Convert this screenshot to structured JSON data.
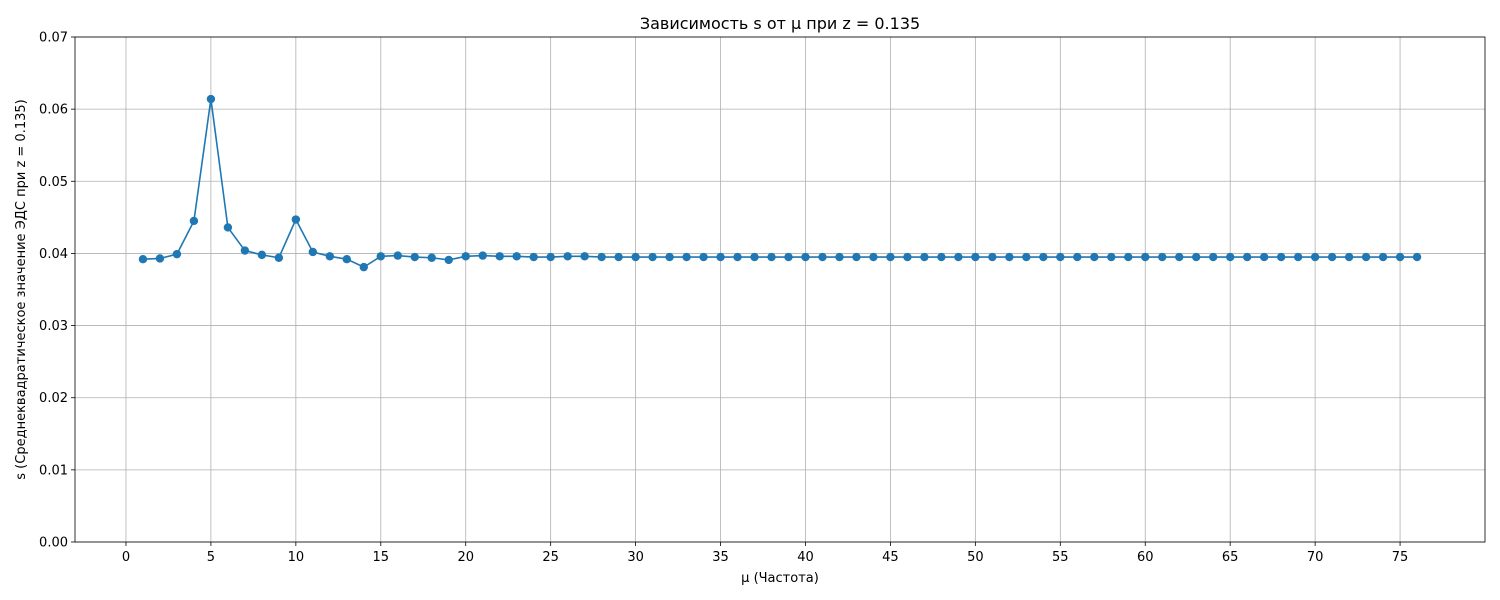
{
  "chart_data": {
    "type": "line",
    "title": "Зависимость s от μ при z = 0.135",
    "xlabel": "μ (Частота)",
    "ylabel": "s (Среднеквадратическое значение ЭДС при z = 0.135)",
    "xlim": [
      -3,
      80
    ],
    "ylim": [
      0,
      0.07
    ],
    "xticks": [
      0,
      5,
      10,
      15,
      20,
      25,
      30,
      35,
      40,
      45,
      50,
      55,
      60,
      65,
      70,
      75
    ],
    "yticks": [
      "0.00",
      "0.01",
      "0.02",
      "0.03",
      "0.04",
      "0.05",
      "0.06",
      "0.07"
    ],
    "grid": true,
    "color": "#1f77b4",
    "x": [
      1,
      2,
      3,
      4,
      5,
      6,
      7,
      8,
      9,
      10,
      11,
      12,
      13,
      14,
      15,
      16,
      17,
      18,
      19,
      20,
      21,
      22,
      23,
      24,
      25,
      26,
      27,
      28,
      29,
      30,
      31,
      32,
      33,
      34,
      35,
      36,
      37,
      38,
      39,
      40,
      41,
      42,
      43,
      44,
      45,
      46,
      47,
      48,
      49,
      50,
      51,
      52,
      53,
      54,
      55,
      56,
      57,
      58,
      59,
      60,
      61,
      62,
      63,
      64,
      65,
      66,
      67,
      68,
      69,
      70,
      71,
      72,
      73,
      74,
      75,
      76
    ],
    "series": [
      {
        "values": [
          0.0392,
          0.0393,
          0.0399,
          0.0445,
          0.0614,
          0.0436,
          0.0404,
          0.0398,
          0.0394,
          0.0447,
          0.0402,
          0.0396,
          0.0392,
          0.0381,
          0.0396,
          0.0397,
          0.0395,
          0.0394,
          0.0391,
          0.0396,
          0.0397,
          0.0396,
          0.0396,
          0.0395,
          0.0395,
          0.0396,
          0.0396,
          0.0395,
          0.0395,
          0.0395,
          0.0395,
          0.0395,
          0.0395,
          0.0395,
          0.0395,
          0.0395,
          0.0395,
          0.0395,
          0.0395,
          0.0395,
          0.0395,
          0.0395,
          0.0395,
          0.0395,
          0.0395,
          0.0395,
          0.0395,
          0.0395,
          0.0395,
          0.0395,
          0.0395,
          0.0395,
          0.0395,
          0.0395,
          0.0395,
          0.0395,
          0.0395,
          0.0395,
          0.0395,
          0.0395,
          0.0395,
          0.0395,
          0.0395,
          0.0395,
          0.0395,
          0.0395,
          0.0395,
          0.0395,
          0.0395,
          0.0395,
          0.0395,
          0.0395,
          0.0395,
          0.0395,
          0.0395,
          0.0395
        ]
      }
    ]
  }
}
